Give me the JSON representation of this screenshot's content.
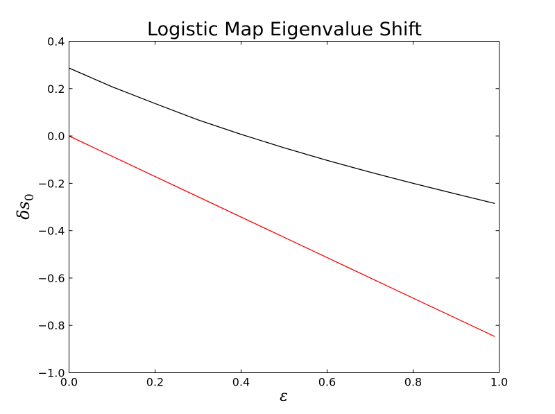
{
  "chart_data": {
    "type": "line",
    "title": "Logistic Map Eigenvalue Shift",
    "xlabel": "ε",
    "ylabel": "δs",
    "ylabel_subscript": "0",
    "xlim": [
      0.0,
      1.0
    ],
    "ylim": [
      -1.0,
      0.4
    ],
    "grid": false,
    "xticks": [
      "0.0",
      "0.2",
      "0.4",
      "0.6",
      "0.8",
      "1.0"
    ],
    "yticks": [
      "0.4",
      "0.2",
      "0.0",
      "−0.2",
      "−0.4",
      "−0.6",
      "−0.8",
      "−1.0"
    ],
    "series": [
      {
        "color": "#000000",
        "x": [
          0.0,
          0.1,
          0.2,
          0.3,
          0.4,
          0.5,
          0.6,
          0.7,
          0.8,
          0.9,
          0.99
        ],
        "y": [
          0.287,
          0.208,
          0.137,
          0.068,
          0.007,
          -0.05,
          -0.103,
          -0.153,
          -0.2,
          -0.245,
          -0.285
        ]
      },
      {
        "color": "#ff0000",
        "x": [
          0.0,
          0.25,
          0.5,
          0.75,
          0.99
        ],
        "y": [
          0.0,
          -0.214,
          -0.428,
          -0.642,
          -0.847
        ]
      }
    ]
  }
}
